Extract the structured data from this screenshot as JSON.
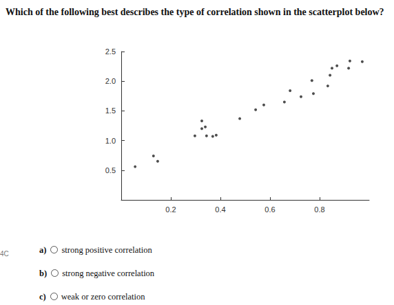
{
  "question": "Which of the following best describes the type of correlation shown in the scatterplot below?",
  "side_label": "4C",
  "options": [
    {
      "letter": "a)",
      "text": "strong positive correlation"
    },
    {
      "letter": "b)",
      "text": "strong negative correlation"
    },
    {
      "letter": "c)",
      "text": "weak or zero correlation"
    }
  ],
  "chart_data": {
    "type": "scatter",
    "x": [
      0.056,
      0.13,
      0.147,
      0.297,
      0.325,
      0.339,
      0.325,
      0.344,
      0.369,
      0.383,
      0.478,
      0.542,
      0.575,
      0.658,
      0.681,
      0.725,
      0.775,
      0.769,
      0.833,
      0.842,
      0.85,
      0.87,
      0.917,
      0.922,
      0.972
    ],
    "values": [
      0.56,
      0.74,
      0.65,
      1.08,
      1.2,
      1.23,
      1.33,
      1.08,
      1.07,
      1.09,
      1.37,
      1.52,
      1.6,
      1.65,
      1.84,
      1.74,
      1.79,
      2.01,
      1.92,
      2.1,
      2.22,
      2.26,
      2.22,
      2.34,
      2.33
    ],
    "color": "#222222",
    "marker": "circle",
    "xlim": [
      0,
      1
    ],
    "ylim": [
      0,
      2.5
    ],
    "xticks": [
      0.2,
      0.4,
      0.6,
      0.8
    ],
    "yticks": [
      0.5,
      {
        "value": 1,
        "label": "1.0"
      },
      1.5,
      {
        "value": 2,
        "label": "2.0"
      },
      2.5
    ],
    "grid": false
  }
}
